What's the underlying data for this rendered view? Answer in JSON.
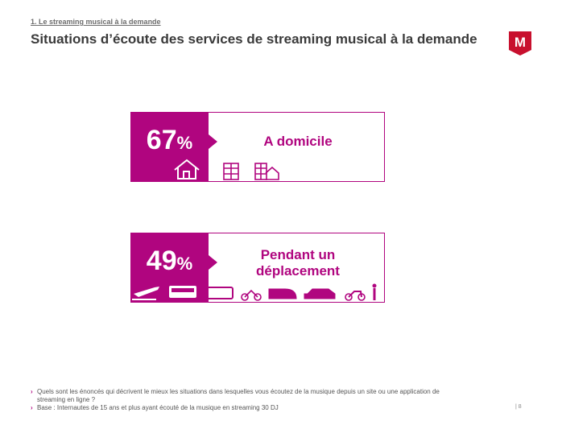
{
  "header": {
    "section": "1. Le streaming musical à la demande",
    "title": "Situations d’écoute des services de streaming musical à la demande",
    "logo": "M"
  },
  "cards": [
    {
      "value": 67,
      "unit": "%",
      "label": "A domicile"
    },
    {
      "value": 49,
      "unit": "%",
      "label": "Pendant un déplacement"
    }
  ],
  "footnotes": [
    "Quels sont les énoncés qui décrivent le mieux les situations dans lesquelles vous écoutez de la musique depuis un site ou une application de streaming en ligne ?",
    "Base : Internautes de 15 ans et plus ayant écouté de la musique en streaming 30 DJ"
  ],
  "page_number": "8"
}
